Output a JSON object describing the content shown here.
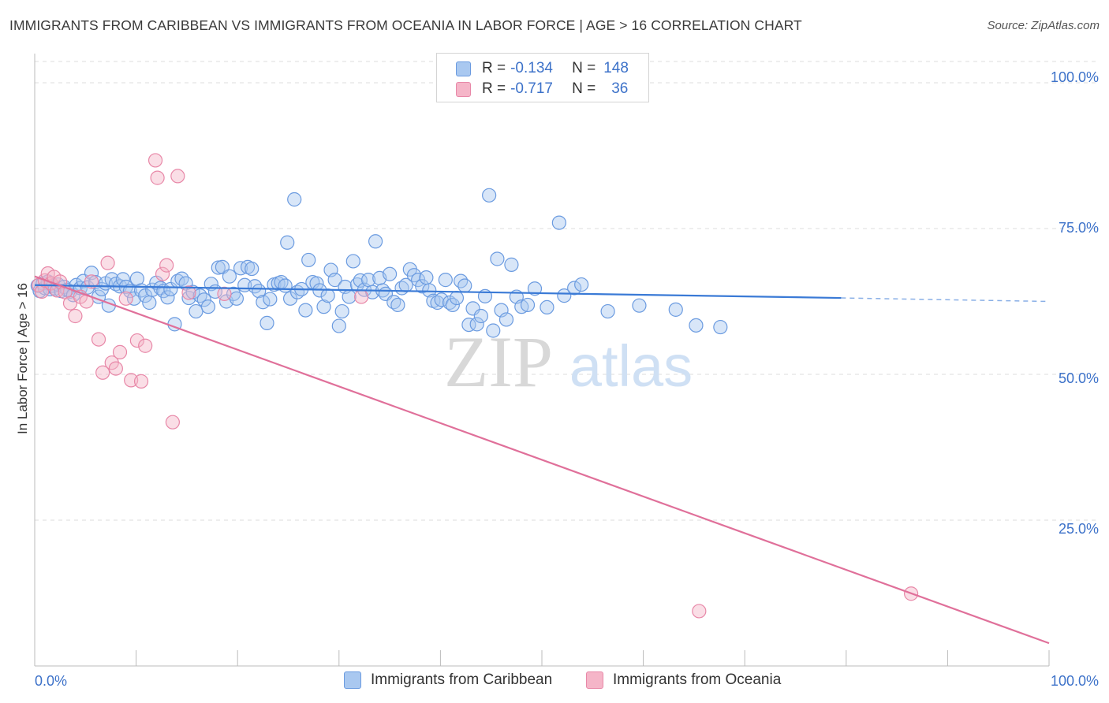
{
  "title": "IMMIGRANTS FROM CARIBBEAN VS IMMIGRANTS FROM OCEANIA IN LABOR FORCE | AGE > 16 CORRELATION CHART",
  "source": "Source: ZipAtlas.com",
  "watermark": {
    "zip": "ZIP",
    "atlas": "atlas"
  },
  "legend": {
    "rows": [
      {
        "r_label": "R =",
        "r_value": "-0.134",
        "n_label": "N =",
        "n_value": "148"
      },
      {
        "r_label": "R =",
        "r_value": "-0.717",
        "n_label": "N =",
        "n_value": "36"
      }
    ]
  },
  "colors": {
    "caribbean_fill": "#a9c8f0",
    "caribbean_stroke": "#6b9be0",
    "caribbean_line": "#3a7ad6",
    "oceania_fill": "#f5b5c8",
    "oceania_stroke": "#e888a8",
    "oceania_line": "#e0709a",
    "tick_text": "#3d72c9",
    "grid": "#dddddd"
  },
  "chart_data": {
    "type": "scatter",
    "title": "IMMIGRANTS FROM CARIBBEAN VS IMMIGRANTS FROM OCEANIA IN LABOR FORCE | AGE > 16 CORRELATION CHART",
    "xlabel": "",
    "ylabel": "In Labor Force | Age > 16",
    "xlim": [
      0,
      100
    ],
    "ylim": [
      0,
      105
    ],
    "x_tick_labels": [
      "0.0%",
      "100.0%"
    ],
    "y_ticks": [
      25,
      50,
      75,
      100
    ],
    "y_tick_labels": [
      "25.0%",
      "50.0%",
      "75.0%",
      "100.0%"
    ],
    "grid": true,
    "legend_position": "top-center",
    "series": [
      {
        "name": "Immigrants from Caribbean",
        "stats": {
          "R": -0.134,
          "N": 148
        },
        "trend": {
          "x": [
            0,
            79.5
          ],
          "y": [
            65.3,
            63.1
          ],
          "dashed_to_x": 100,
          "dashed_to_y": 62.5
        },
        "points": [
          [
            0.3,
            65.2
          ],
          [
            0.5,
            64.3
          ],
          [
            0.8,
            65.6
          ],
          [
            1.0,
            64.8
          ],
          [
            1.3,
            65.9
          ],
          [
            1.5,
            64.6
          ],
          [
            1.8,
            65.2
          ],
          [
            2.0,
            64.7
          ],
          [
            2.3,
            65.4
          ],
          [
            2.6,
            64.3
          ],
          [
            2.9,
            65.0
          ],
          [
            3.2,
            64.5
          ],
          [
            3.5,
            64.2
          ],
          [
            3.8,
            63.6
          ],
          [
            4.1,
            65.3
          ],
          [
            4.5,
            64.8
          ],
          [
            4.8,
            66.0
          ],
          [
            5.2,
            64.9
          ],
          [
            5.6,
            67.4
          ],
          [
            6.0,
            65.8
          ],
          [
            6.3,
            63.3
          ],
          [
            6.6,
            64.6
          ],
          [
            7.0,
            65.6
          ],
          [
            7.3,
            61.8
          ],
          [
            7.6,
            66.3
          ],
          [
            8.0,
            65.5
          ],
          [
            8.4,
            65.1
          ],
          [
            8.7,
            66.3
          ],
          [
            9.0,
            65.0
          ],
          [
            9.4,
            64.3
          ],
          [
            9.8,
            63.0
          ],
          [
            10.1,
            66.4
          ],
          [
            10.5,
            64.4
          ],
          [
            10.9,
            63.5
          ],
          [
            11.3,
            62.3
          ],
          [
            11.6,
            64.5
          ],
          [
            12.0,
            65.7
          ],
          [
            12.4,
            64.8
          ],
          [
            12.7,
            64.3
          ],
          [
            13.1,
            63.2
          ],
          [
            13.4,
            64.6
          ],
          [
            13.8,
            58.6
          ],
          [
            14.1,
            66.0
          ],
          [
            14.5,
            66.4
          ],
          [
            14.9,
            65.6
          ],
          [
            15.2,
            63.1
          ],
          [
            15.6,
            64.1
          ],
          [
            15.9,
            60.8
          ],
          [
            16.3,
            63.5
          ],
          [
            16.7,
            62.8
          ],
          [
            17.1,
            61.6
          ],
          [
            17.4,
            65.5
          ],
          [
            17.8,
            64.2
          ],
          [
            18.1,
            68.3
          ],
          [
            18.5,
            68.4
          ],
          [
            18.9,
            62.5
          ],
          [
            19.2,
            66.8
          ],
          [
            19.6,
            63.8
          ],
          [
            19.9,
            63.0
          ],
          [
            20.3,
            68.2
          ],
          [
            20.7,
            65.3
          ],
          [
            21.0,
            68.4
          ],
          [
            21.4,
            68.1
          ],
          [
            21.7,
            65.1
          ],
          [
            22.1,
            64.3
          ],
          [
            22.5,
            62.4
          ],
          [
            22.9,
            58.8
          ],
          [
            23.2,
            62.9
          ],
          [
            23.6,
            65.4
          ],
          [
            24.0,
            65.6
          ],
          [
            24.3,
            65.8
          ],
          [
            24.7,
            65.2
          ],
          [
            24.9,
            72.6
          ],
          [
            25.2,
            63.0
          ],
          [
            25.6,
            80.0
          ],
          [
            25.9,
            64.1
          ],
          [
            26.3,
            64.6
          ],
          [
            26.7,
            61.0
          ],
          [
            27.0,
            69.6
          ],
          [
            27.4,
            65.8
          ],
          [
            27.8,
            65.6
          ],
          [
            28.1,
            64.4
          ],
          [
            28.5,
            61.6
          ],
          [
            28.9,
            63.5
          ],
          [
            29.2,
            67.9
          ],
          [
            29.6,
            66.2
          ],
          [
            30.0,
            58.3
          ],
          [
            30.3,
            60.8
          ],
          [
            30.6,
            65.0
          ],
          [
            31.0,
            63.3
          ],
          [
            31.4,
            69.4
          ],
          [
            31.8,
            65.4
          ],
          [
            32.1,
            66.1
          ],
          [
            32.5,
            64.5
          ],
          [
            32.9,
            66.2
          ],
          [
            33.3,
            64.1
          ],
          [
            33.6,
            72.8
          ],
          [
            34.0,
            66.5
          ],
          [
            34.3,
            64.4
          ],
          [
            34.6,
            63.8
          ],
          [
            35.0,
            67.2
          ],
          [
            35.4,
            62.4
          ],
          [
            35.8,
            61.9
          ],
          [
            36.2,
            64.8
          ],
          [
            36.6,
            65.3
          ],
          [
            37.0,
            68.0
          ],
          [
            37.4,
            67.0
          ],
          [
            37.8,
            66.2
          ],
          [
            38.2,
            65.1
          ],
          [
            38.6,
            66.6
          ],
          [
            38.9,
            64.4
          ],
          [
            39.3,
            62.6
          ],
          [
            39.7,
            62.3
          ],
          [
            40.1,
            62.8
          ],
          [
            40.5,
            66.2
          ],
          [
            40.9,
            62.3
          ],
          [
            41.2,
            61.9
          ],
          [
            41.6,
            63.1
          ],
          [
            42.0,
            66.0
          ],
          [
            42.4,
            65.2
          ],
          [
            42.8,
            58.5
          ],
          [
            43.2,
            61.3
          ],
          [
            43.6,
            58.6
          ],
          [
            44.0,
            60.0
          ],
          [
            44.4,
            63.4
          ],
          [
            44.8,
            80.7
          ],
          [
            45.2,
            57.5
          ],
          [
            45.6,
            69.8
          ],
          [
            46.0,
            61.0
          ],
          [
            46.5,
            59.4
          ],
          [
            47.0,
            68.8
          ],
          [
            47.5,
            63.3
          ],
          [
            48.0,
            61.6
          ],
          [
            48.6,
            61.9
          ],
          [
            49.3,
            64.7
          ],
          [
            50.5,
            61.5
          ],
          [
            51.7,
            76.0
          ],
          [
            52.2,
            63.5
          ],
          [
            53.2,
            64.8
          ],
          [
            53.9,
            65.4
          ],
          [
            56.5,
            60.8
          ],
          [
            59.6,
            61.8
          ],
          [
            63.2,
            61.1
          ],
          [
            65.2,
            58.4
          ],
          [
            67.6,
            58.1
          ]
        ]
      },
      {
        "name": "Immigrants from Oceania",
        "stats": {
          "R": -0.717,
          "N": 36
        },
        "trend": {
          "x": [
            0,
            100
          ],
          "y": [
            66.8,
            3.9
          ]
        },
        "points": [
          [
            0.4,
            65.3
          ],
          [
            0.7,
            64.2
          ],
          [
            1.0,
            66.1
          ],
          [
            1.3,
            67.3
          ],
          [
            1.6,
            65.6
          ],
          [
            1.9,
            66.7
          ],
          [
            2.2,
            64.4
          ],
          [
            2.5,
            65.9
          ],
          [
            3.0,
            64.1
          ],
          [
            3.5,
            62.2
          ],
          [
            4.0,
            60.0
          ],
          [
            4.5,
            63.3
          ],
          [
            5.1,
            62.5
          ],
          [
            5.6,
            65.9
          ],
          [
            6.3,
            56.0
          ],
          [
            6.7,
            50.3
          ],
          [
            7.2,
            69.1
          ],
          [
            7.6,
            52.0
          ],
          [
            8.0,
            51.0
          ],
          [
            8.4,
            53.8
          ],
          [
            9.0,
            63.0
          ],
          [
            9.5,
            49.0
          ],
          [
            10.1,
            55.8
          ],
          [
            10.5,
            48.8
          ],
          [
            10.9,
            54.9
          ],
          [
            11.9,
            86.7
          ],
          [
            12.1,
            83.7
          ],
          [
            12.6,
            67.2
          ],
          [
            13.0,
            68.7
          ],
          [
            13.6,
            41.8
          ],
          [
            14.1,
            84.0
          ],
          [
            15.2,
            64.0
          ],
          [
            18.7,
            63.8
          ],
          [
            32.2,
            63.3
          ],
          [
            65.5,
            9.4
          ],
          [
            86.4,
            12.4
          ]
        ]
      }
    ]
  },
  "bottom_legend": [
    {
      "label": "Immigrants from Caribbean"
    },
    {
      "label": "Immigrants from Oceania"
    }
  ]
}
